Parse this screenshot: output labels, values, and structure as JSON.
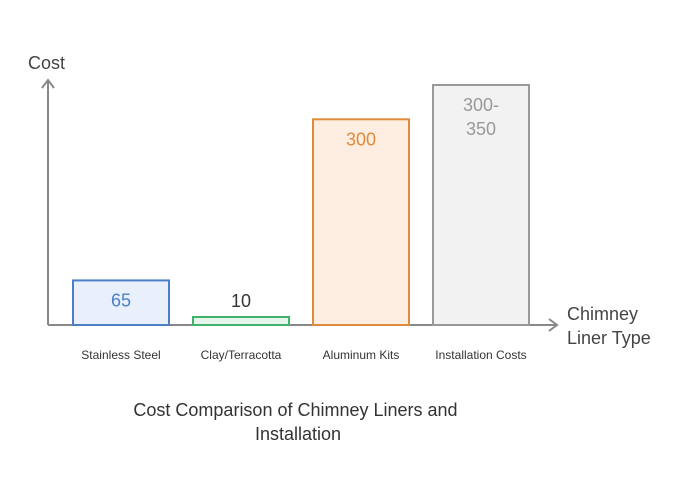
{
  "chart_data": {
    "type": "bar",
    "title": "Cost Comparison of Chimney Liners and Installation",
    "xlabel": "Chimney Liner Type",
    "ylabel": "Cost",
    "ylim": [
      0,
      350
    ],
    "categories": [
      "Stainless Steel",
      "Clay/Terracotta",
      "Aluminum Kits",
      "Installation Costs"
    ],
    "values": [
      65,
      10,
      300,
      350
    ],
    "value_labels": [
      "65",
      "10",
      "300",
      "300-350"
    ],
    "colors": {
      "stroke": [
        "#4a7fc8",
        "#3fb36b",
        "#e08a3c",
        "#999999"
      ],
      "fill": [
        "#e9f0fb",
        "#e6f6ea",
        "#fdeee1",
        "#f2f2f2"
      ],
      "label": [
        "#4a7fc8",
        "#333333",
        "#e08a3c",
        "#999999"
      ]
    },
    "grid": false,
    "legend": "none"
  }
}
